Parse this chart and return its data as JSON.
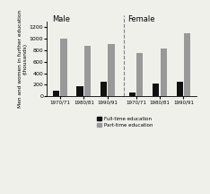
{
  "male_years": [
    "1970/71",
    "1980/81",
    "1990/91"
  ],
  "female_years": [
    "1970/71",
    "1980/81",
    "1990/91"
  ],
  "male_fulltime": [
    100,
    170,
    250
  ],
  "male_parttime": [
    1000,
    870,
    910
  ],
  "female_fulltime": [
    65,
    220,
    255
  ],
  "female_parttime": [
    755,
    830,
    1090
  ],
  "ylabel": "Men and women in further education\n(thousands)",
  "title_male": "Male",
  "title_female": "Female",
  "color_fulltime": "#111111",
  "color_parttime": "#999999",
  "ylim": [
    0,
    1300
  ],
  "yticks": [
    0,
    200,
    400,
    600,
    800,
    1000,
    1200
  ],
  "background": "#f0f0eb"
}
